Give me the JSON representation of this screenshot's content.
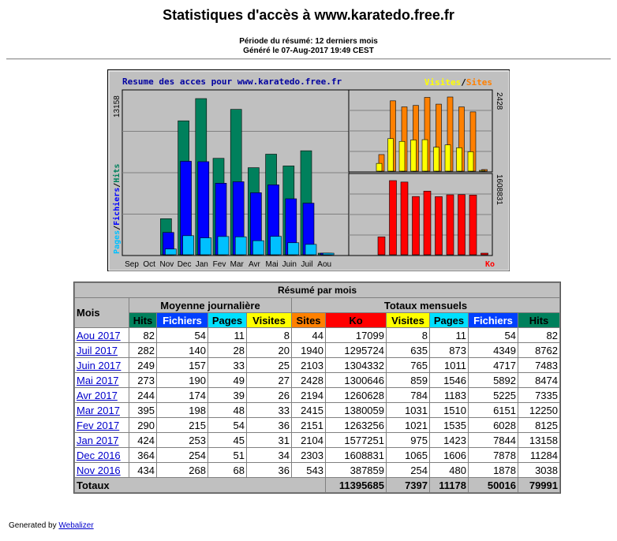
{
  "header": {
    "title": "Statistiques d'accès à www.karatedo.free.fr",
    "period": "Période du résumé: 12 derniers mois",
    "generated": "Généré le 07-Aug-2017 19:49 CEST"
  },
  "chart_data": {
    "type": "bar",
    "title": "Resume des acces pour www.karatedo.free.fr",
    "left_axis_label": [
      "Pages",
      "/",
      "Fichiers",
      "/",
      "Hits"
    ],
    "left_axis_max": "13158",
    "right_top_legend": [
      "Visites",
      "/",
      "Sites"
    ],
    "right_top_max": "2428",
    "right_bottom_max": "1608831",
    "right_bottom_label": "Ko",
    "categories": [
      "Sep",
      "Oct",
      "Nov",
      "Dec",
      "Jan",
      "Fev",
      "Mar",
      "Avr",
      "Mai",
      "Juin",
      "Juil",
      "Aou"
    ],
    "series": [
      {
        "name": "Hits",
        "values": [
          0,
          0,
          3038,
          11284,
          13158,
          8125,
          12250,
          7335,
          8474,
          7483,
          8762,
          82
        ]
      },
      {
        "name": "Fichiers",
        "values": [
          0,
          0,
          1878,
          7878,
          7844,
          6028,
          6151,
          5225,
          5892,
          4717,
          4349,
          54
        ]
      },
      {
        "name": "Pages",
        "values": [
          0,
          0,
          480,
          1606,
          1423,
          1535,
          1510,
          1183,
          1546,
          1011,
          873,
          11
        ]
      },
      {
        "name": "Visites",
        "values": [
          0,
          0,
          254,
          1065,
          975,
          1021,
          1031,
          784,
          859,
          765,
          635,
          8
        ]
      },
      {
        "name": "Sites",
        "values": [
          0,
          0,
          543,
          2303,
          2104,
          2151,
          2415,
          2194,
          2428,
          2103,
          1940,
          44
        ]
      },
      {
        "name": "Ko",
        "values": [
          0,
          0,
          387859,
          1608831,
          1577251,
          1263256,
          1380059,
          1260628,
          1300646,
          1304332,
          1295724,
          17099
        ]
      }
    ],
    "colors": {
      "hits": "#00805c",
      "files": "#0000ff",
      "pages": "#00c0ff",
      "visits": "#ffff00",
      "sites": "#ff8000",
      "ko": "#ff0000"
    }
  },
  "table": {
    "banner": "Résumé par mois",
    "mois_header": "Mois",
    "group_daily": "Moyenne journalière",
    "group_monthly": "Totaux mensuels",
    "daily_cols": [
      "Hits",
      "Fichiers",
      "Pages",
      "Visites"
    ],
    "monthly_cols": [
      "Sites",
      "Ko",
      "Visites",
      "Pages",
      "Fichiers",
      "Hits"
    ],
    "rows": [
      {
        "month": "Aou 2017",
        "d": [
          "82",
          "54",
          "11",
          "8"
        ],
        "m": [
          "44",
          "17099",
          "8",
          "11",
          "54",
          "82"
        ]
      },
      {
        "month": "Juil 2017",
        "d": [
          "282",
          "140",
          "28",
          "20"
        ],
        "m": [
          "1940",
          "1295724",
          "635",
          "873",
          "4349",
          "8762"
        ]
      },
      {
        "month": "Juin 2017",
        "d": [
          "249",
          "157",
          "33",
          "25"
        ],
        "m": [
          "2103",
          "1304332",
          "765",
          "1011",
          "4717",
          "7483"
        ]
      },
      {
        "month": "Mai 2017",
        "d": [
          "273",
          "190",
          "49",
          "27"
        ],
        "m": [
          "2428",
          "1300646",
          "859",
          "1546",
          "5892",
          "8474"
        ]
      },
      {
        "month": "Avr 2017",
        "d": [
          "244",
          "174",
          "39",
          "26"
        ],
        "m": [
          "2194",
          "1260628",
          "784",
          "1183",
          "5225",
          "7335"
        ]
      },
      {
        "month": "Mar 2017",
        "d": [
          "395",
          "198",
          "48",
          "33"
        ],
        "m": [
          "2415",
          "1380059",
          "1031",
          "1510",
          "6151",
          "12250"
        ]
      },
      {
        "month": "Fev 2017",
        "d": [
          "290",
          "215",
          "54",
          "36"
        ],
        "m": [
          "2151",
          "1263256",
          "1021",
          "1535",
          "6028",
          "8125"
        ]
      },
      {
        "month": "Jan 2017",
        "d": [
          "424",
          "253",
          "45",
          "31"
        ],
        "m": [
          "2104",
          "1577251",
          "975",
          "1423",
          "7844",
          "13158"
        ]
      },
      {
        "month": "Dec 2016",
        "d": [
          "364",
          "254",
          "51",
          "34"
        ],
        "m": [
          "2303",
          "1608831",
          "1065",
          "1606",
          "7878",
          "11284"
        ]
      },
      {
        "month": "Nov 2016",
        "d": [
          "434",
          "268",
          "68",
          "36"
        ],
        "m": [
          "543",
          "387859",
          "254",
          "480",
          "1878",
          "3038"
        ]
      }
    ],
    "totals_label": "Totaux",
    "totals": [
      "11395685",
      "7397",
      "11178",
      "50016",
      "79991"
    ]
  },
  "footer": {
    "prefix": "Generated by",
    "link": "Webalizer"
  }
}
